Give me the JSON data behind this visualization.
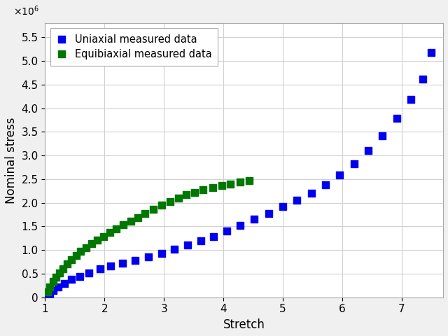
{
  "uniaxial_stretch": [
    1.02,
    1.08,
    1.14,
    1.22,
    1.32,
    1.44,
    1.58,
    1.74,
    1.92,
    2.1,
    2.3,
    2.52,
    2.74,
    2.96,
    3.18,
    3.4,
    3.62,
    3.84,
    4.06,
    4.28,
    4.52,
    4.76,
    5.0,
    5.24,
    5.48,
    5.72,
    5.96,
    6.2,
    6.44,
    6.68,
    6.92,
    7.16,
    7.36,
    7.5
  ],
  "uniaxial_stress": [
    20000.0,
    70000.0,
    140000.0,
    220000.0,
    300000.0,
    380000.0,
    440000.0,
    520000.0,
    600000.0,
    660000.0,
    720000.0,
    780000.0,
    850000.0,
    930000.0,
    1020000.0,
    1100000.0,
    1190000.0,
    1290000.0,
    1400000.0,
    1520000.0,
    1650000.0,
    1780000.0,
    1920000.0,
    2050000.0,
    2200000.0,
    2380000.0,
    2580000.0,
    2820000.0,
    3100000.0,
    3420000.0,
    3780000.0,
    4180000.0,
    4620000.0,
    5180000.0
  ],
  "equibiaxial_stretch": [
    1.04,
    1.08,
    1.13,
    1.18,
    1.24,
    1.3,
    1.37,
    1.44,
    1.52,
    1.6,
    1.69,
    1.78,
    1.88,
    1.98,
    2.09,
    2.2,
    2.32,
    2.44,
    2.56,
    2.68,
    2.82,
    2.96,
    3.1,
    3.24,
    3.38,
    3.52,
    3.66,
    3.82,
    3.97,
    4.12,
    4.28,
    4.43
  ],
  "equibiaxial_stress": [
    120000.0,
    220000.0,
    330000.0,
    430000.0,
    520000.0,
    610000.0,
    700000.0,
    790000.0,
    880000.0,
    970000.0,
    1050000.0,
    1130000.0,
    1210000.0,
    1290000.0,
    1370000.0,
    1450000.0,
    1530000.0,
    1610000.0,
    1690000.0,
    1770000.0,
    1860000.0,
    1950000.0,
    2030000.0,
    2100000.0,
    2170000.0,
    2220000.0,
    2270000.0,
    2320000.0,
    2360000.0,
    2400000.0,
    2440000.0,
    2470000.0
  ],
  "uniaxial_color": "#0000EE",
  "equibiaxial_color": "#007700",
  "xlabel": "Stretch",
  "ylabel": "Nominal stress",
  "xlim": [
    1,
    7.7
  ],
  "ylim": [
    0,
    5800000.0
  ],
  "legend_uniaxial": "Uniaxial measured data",
  "legend_equibiaxial": "Equibiaxial measured data",
  "marker_size": 55,
  "xticks": [
    1,
    2,
    3,
    4,
    5,
    6,
    7
  ],
  "yticks": [
    0,
    500000.0,
    1000000.0,
    1500000.0,
    2000000.0,
    2500000.0,
    3000000.0,
    3500000.0,
    4000000.0,
    4500000.0,
    5000000.0,
    5500000.0
  ],
  "grid_color": "#d0d0d0",
  "spine_color": "#aaaaaa",
  "background_color": "#ffffff",
  "fig_background": "#f0f0f0"
}
